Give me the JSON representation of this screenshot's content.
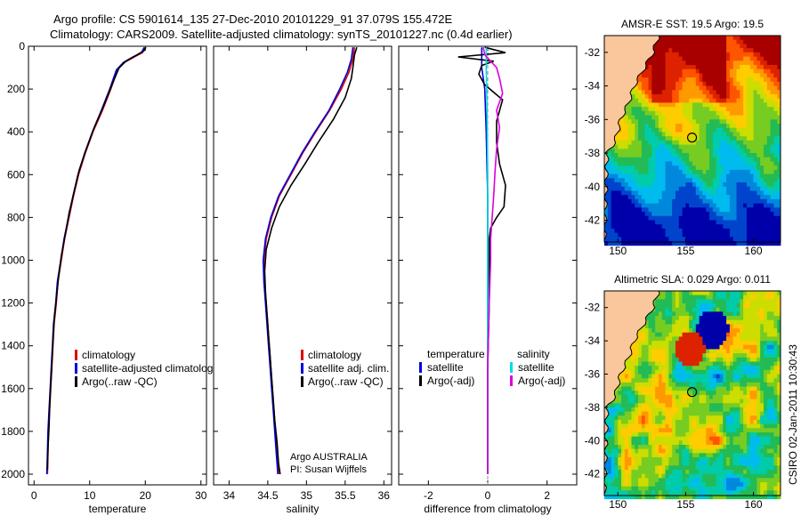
{
  "header": {
    "line1": "Argo profile: CS 5901614_135 27-Dec-2010 20101229_91 37.079S 155.472E",
    "line2": "Climatology: CARS2009. Satellite-adjusted climatology: synTS_20101227.nc (0.4d earlier)"
  },
  "side_label": "CSIRO 02-Jan-2011 10:30:43",
  "chart_data": [
    {
      "type": "line",
      "xlabel": "temperature",
      "ylabel": "",
      "xlim": [
        -1,
        31
      ],
      "ylim": [
        2050,
        0
      ],
      "xticks": [
        0,
        10,
        20,
        30
      ],
      "yticks": [
        0,
        200,
        400,
        600,
        800,
        1000,
        1200,
        1400,
        1600,
        1800,
        2000
      ],
      "legend": [
        "climatology",
        "satellite-adjusted climatology",
        "Argo(..raw -QC)"
      ],
      "legend_placement": "lower-right",
      "series": [
        {
          "name": "climatology",
          "color": "#dd0000",
          "points": [
            [
              20,
              5
            ],
            [
              19.5,
              30
            ],
            [
              18,
              50
            ],
            [
              16.3,
              75
            ],
            [
              15,
              110
            ],
            [
              13.8,
              200
            ],
            [
              12.3,
              300
            ],
            [
              10.6,
              400
            ],
            [
              9.2,
              500
            ],
            [
              8,
              600
            ],
            [
              7.1,
              700
            ],
            [
              6.3,
              800
            ],
            [
              5.5,
              900
            ],
            [
              4.9,
              1000
            ],
            [
              4.3,
              1100
            ],
            [
              4.0,
              1200
            ],
            [
              3.6,
              1300
            ],
            [
              3.4,
              1400
            ],
            [
              3.2,
              1500
            ],
            [
              3.0,
              1600
            ],
            [
              2.8,
              1700
            ],
            [
              2.6,
              1800
            ],
            [
              2.5,
              1900
            ],
            [
              2.4,
              2000
            ]
          ]
        },
        {
          "name": "satellite-adjusted climatology",
          "color": "#0000dd",
          "points": [
            [
              19.8,
              5
            ],
            [
              19.3,
              30
            ],
            [
              17.8,
              50
            ],
            [
              16.1,
              75
            ],
            [
              14.8,
              110
            ],
            [
              13.6,
              200
            ],
            [
              12.1,
              300
            ],
            [
              10.5,
              400
            ],
            [
              9.1,
              500
            ],
            [
              7.9,
              600
            ],
            [
              7.0,
              700
            ],
            [
              6.2,
              800
            ],
            [
              5.4,
              900
            ],
            [
              4.8,
              1000
            ],
            [
              4.2,
              1100
            ],
            [
              3.9,
              1200
            ],
            [
              3.5,
              1300
            ],
            [
              3.3,
              1400
            ],
            [
              3.1,
              1500
            ],
            [
              2.9,
              1600
            ],
            [
              2.7,
              1700
            ],
            [
              2.5,
              1800
            ],
            [
              2.4,
              1900
            ],
            [
              2.3,
              2000
            ]
          ]
        },
        {
          "name": "Argo(..raw -QC)",
          "color": "#000000",
          "points": [
            [
              20.1,
              5
            ],
            [
              19.8,
              20
            ],
            [
              18.2,
              45
            ],
            [
              16.5,
              70
            ],
            [
              15.3,
              100
            ],
            [
              14,
              180
            ],
            [
              12.5,
              280
            ],
            [
              10.8,
              380
            ],
            [
              9.4,
              480
            ],
            [
              8.1,
              580
            ],
            [
              7.2,
              680
            ],
            [
              6.3,
              780
            ],
            [
              5.6,
              880
            ],
            [
              4.9,
              980
            ],
            [
              4.4,
              1080
            ],
            [
              4.0,
              1180
            ],
            [
              3.6,
              1280
            ],
            [
              3.4,
              1380
            ],
            [
              3.2,
              1480
            ],
            [
              3.0,
              1580
            ],
            [
              2.8,
              1680
            ],
            [
              2.7,
              1780
            ],
            [
              2.5,
              1880
            ],
            [
              2.4,
              1980
            ]
          ]
        }
      ]
    },
    {
      "type": "line",
      "xlabel": "salinity",
      "ylabel": "",
      "xlim": [
        33.8,
        36.1
      ],
      "ylim": [
        2050,
        0
      ],
      "xticks": [
        34,
        34.5,
        35,
        35.5,
        36
      ],
      "xtick_labels": [
        "34",
        "34.5",
        "35",
        "35.5",
        "36"
      ],
      "legend": [
        "climatology",
        "satellite adj. clim.",
        "Argo(..raw -QC)"
      ],
      "legend_placement": "lower-right",
      "annotation": [
        "Argo AUSTRALIA",
        "PI: Susan Wijffels"
      ],
      "series": [
        {
          "name": "climatology",
          "color": "#dd0000",
          "points": [
            [
              35.62,
              5
            ],
            [
              35.6,
              60
            ],
            [
              35.55,
              120
            ],
            [
              35.45,
              200
            ],
            [
              35.3,
              300
            ],
            [
              35.12,
              400
            ],
            [
              34.95,
              500
            ],
            [
              34.8,
              600
            ],
            [
              34.65,
              700
            ],
            [
              34.55,
              800
            ],
            [
              34.48,
              900
            ],
            [
              34.45,
              1000
            ],
            [
              34.46,
              1100
            ],
            [
              34.48,
              1200
            ],
            [
              34.5,
              1300
            ],
            [
              34.52,
              1400
            ],
            [
              34.54,
              1500
            ],
            [
              34.56,
              1600
            ],
            [
              34.58,
              1700
            ],
            [
              34.6,
              1800
            ],
            [
              34.62,
              1900
            ],
            [
              34.64,
              2000
            ]
          ]
        },
        {
          "name": "satellite adj. clim.",
          "color": "#0000dd",
          "points": [
            [
              35.6,
              5
            ],
            [
              35.58,
              60
            ],
            [
              35.53,
              120
            ],
            [
              35.43,
              200
            ],
            [
              35.29,
              300
            ],
            [
              35.11,
              400
            ],
            [
              34.94,
              500
            ],
            [
              34.79,
              600
            ],
            [
              34.64,
              700
            ],
            [
              34.54,
              800
            ],
            [
              34.47,
              900
            ],
            [
              34.44,
              1000
            ],
            [
              34.45,
              1100
            ],
            [
              34.47,
              1200
            ],
            [
              34.49,
              1300
            ],
            [
              34.51,
              1400
            ],
            [
              34.53,
              1500
            ],
            [
              34.55,
              1600
            ],
            [
              34.57,
              1700
            ],
            [
              34.59,
              1800
            ],
            [
              34.61,
              1900
            ],
            [
              34.63,
              2000
            ]
          ]
        },
        {
          "name": "Argo(..raw -QC)",
          "color": "#000000",
          "points": [
            [
              35.65,
              5
            ],
            [
              35.62,
              40
            ],
            [
              35.6,
              100
            ],
            [
              35.58,
              150
            ],
            [
              35.5,
              240
            ],
            [
              35.35,
              340
            ],
            [
              35.15,
              450
            ],
            [
              34.98,
              550
            ],
            [
              34.8,
              650
            ],
            [
              34.65,
              750
            ],
            [
              34.55,
              850
            ],
            [
              34.48,
              950
            ],
            [
              34.46,
              1050
            ],
            [
              34.47,
              1150
            ],
            [
              34.49,
              1250
            ],
            [
              34.51,
              1350
            ],
            [
              34.53,
              1450
            ],
            [
              34.55,
              1550
            ],
            [
              34.57,
              1650
            ],
            [
              34.59,
              1750
            ],
            [
              34.62,
              1850
            ],
            [
              34.64,
              1950
            ],
            [
              34.66,
              2000
            ]
          ]
        }
      ]
    },
    {
      "type": "line",
      "xlabel": "difference from climatology",
      "ylabel": "",
      "xlim": [
        -3,
        3
      ],
      "ylim": [
        2050,
        0
      ],
      "xticks": [
        -2,
        0,
        2
      ],
      "zero_line": 0,
      "legend_left_title": "temperature",
      "legend_right_title": "salinity",
      "legend_left": [
        "satellite",
        "Argo(-adj)"
      ],
      "legend_right": [
        "satellite",
        "Argo(-adj)"
      ],
      "legend_placement": "lower-center",
      "series": [
        {
          "name": "temperature satellite",
          "color": "#0000dd",
          "points": [
            [
              -0.2,
              5
            ],
            [
              -0.2,
              100
            ],
            [
              -0.1,
              200
            ],
            [
              -0.05,
              400
            ],
            [
              0,
              700
            ],
            [
              0,
              1000
            ],
            [
              0,
              1400
            ],
            [
              0,
              2000
            ]
          ]
        },
        {
          "name": "temperature Argo(-adj)",
          "color": "#000000",
          "points": [
            [
              -0.1,
              5
            ],
            [
              0.6,
              30
            ],
            [
              -1.0,
              50
            ],
            [
              0.2,
              70
            ],
            [
              -0.2,
              90
            ],
            [
              -0.3,
              130
            ],
            [
              -0.1,
              180
            ],
            [
              0.5,
              250
            ],
            [
              0.3,
              350
            ],
            [
              0.3,
              450
            ],
            [
              0.4,
              550
            ],
            [
              0.6,
              650
            ],
            [
              0.55,
              750
            ],
            [
              0.3,
              800
            ],
            [
              0.1,
              850
            ],
            [
              0.05,
              900
            ],
            [
              0.05,
              1000
            ],
            [
              0.05,
              1200
            ],
            [
              0,
              1500
            ],
            [
              0,
              1800
            ],
            [
              0,
              2000
            ]
          ]
        },
        {
          "name": "salinity satellite",
          "color": "#00dddd",
          "points": [
            [
              -0.05,
              5
            ],
            [
              -0.05,
              100
            ],
            [
              -0.02,
              300
            ],
            [
              0,
              600
            ],
            [
              0,
              900
            ],
            [
              0,
              1200
            ],
            [
              0,
              1600
            ],
            [
              0,
              2000
            ]
          ]
        },
        {
          "name": "salinity Argo(-adj)",
          "color": "#dd00dd",
          "points": [
            [
              -0.15,
              5
            ],
            [
              -0.1,
              40
            ],
            [
              0.3,
              100
            ],
            [
              0.4,
              150
            ],
            [
              0.5,
              220
            ],
            [
              0.3,
              300
            ],
            [
              0.4,
              380
            ],
            [
              0.3,
              480
            ],
            [
              0.25,
              580
            ],
            [
              0.2,
              700
            ],
            [
              0.15,
              800
            ],
            [
              0.1,
              900
            ],
            [
              0.1,
              1000
            ],
            [
              0.05,
              1200
            ],
            [
              0,
              1500
            ],
            [
              0,
              1800
            ],
            [
              0,
              2000
            ]
          ]
        }
      ]
    },
    {
      "type": "heatmap",
      "title": "AMSR-E SST: 19.5 Argo: 19.5",
      "xlim": [
        149,
        162
      ],
      "ylim": [
        -43.3,
        -31
      ],
      "xticks": [
        150,
        155,
        160
      ],
      "yticks": [
        -32,
        -34,
        -36,
        -38,
        -40,
        -42
      ],
      "marker": {
        "lon": 155.472,
        "lat": -37.079
      },
      "land_color": "#f9c79b",
      "colors": [
        "#a80000",
        "#dd2200",
        "#ff5500",
        "#ff9900",
        "#ffcc00",
        "#ccdd00",
        "#77cc22",
        "#22bb55",
        "#00ccaa",
        "#00bbee",
        "#0088dd",
        "#0044cc",
        "#0000aa"
      ]
    },
    {
      "type": "heatmap",
      "title": "Altimetric SLA: 0.029 Argo: 0.011",
      "xlim": [
        149,
        162
      ],
      "ylim": [
        -43.3,
        -31
      ],
      "xticks": [
        150,
        155,
        160
      ],
      "yticks": [
        -32,
        -34,
        -36,
        -38,
        -40,
        -42
      ],
      "marker": {
        "lon": 155.472,
        "lat": -37.079
      },
      "land_color": "#f9c79b",
      "colors": [
        "#a80000",
        "#dd2200",
        "#ff5500",
        "#ff9900",
        "#ffcc00",
        "#ccdd00",
        "#77cc22",
        "#22bb55",
        "#00ccaa",
        "#00bbee",
        "#0088dd",
        "#0044cc",
        "#0000aa"
      ]
    }
  ]
}
